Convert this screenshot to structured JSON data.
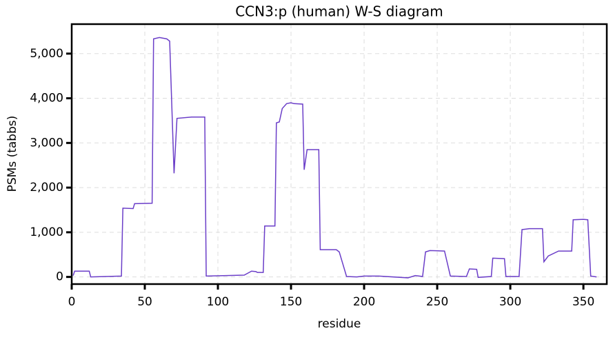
{
  "chart_data": {
    "type": "line",
    "title": "CCN3:p (human) W-S diagram",
    "xlabel": "residue",
    "ylabel": "PSMs (tabbs)",
    "xlim": [
      0,
      366
    ],
    "ylim": [
      -160,
      5660
    ],
    "xticks": [
      0,
      50,
      100,
      150,
      200,
      250,
      300,
      350
    ],
    "yticks": [
      0,
      {
        "value": 1000,
        "label": "1,000"
      },
      {
        "value": 2000,
        "label": "2,000"
      },
      {
        "value": 3000,
        "label": "3,000"
      },
      {
        "value": 4000,
        "label": "4,000"
      },
      {
        "value": 5000,
        "label": "5,000"
      }
    ],
    "grid": true,
    "series": [
      {
        "color": "#6a3dc8",
        "x": [
          1,
          2,
          12,
          13,
          34,
          35,
          42,
          43,
          55,
          56,
          60,
          65,
          67,
          70,
          72,
          82,
          91,
          92,
          118,
          123,
          126,
          127,
          131,
          132,
          139,
          140,
          142,
          144,
          147,
          150,
          152,
          158,
          159,
          161,
          169,
          170,
          181,
          183,
          188,
          195,
          200,
          210,
          230,
          235,
          240,
          242,
          245,
          255,
          259,
          270,
          272,
          277,
          278,
          287,
          288,
          296,
          297,
          306,
          308,
          313,
          322,
          323,
          326,
          333,
          342,
          343,
          350,
          353,
          355,
          359
        ],
        "values": [
          30,
          130,
          130,
          0,
          20,
          1540,
          1530,
          1640,
          1650,
          5330,
          5360,
          5330,
          5280,
          2320,
          3550,
          3580,
          3580,
          20,
          40,
          130,
          120,
          100,
          100,
          1140,
          1140,
          3450,
          3470,
          3770,
          3880,
          3900,
          3880,
          3870,
          2400,
          2850,
          2850,
          610,
          610,
          560,
          10,
          0,
          20,
          20,
          -20,
          30,
          10,
          560,
          590,
          580,
          20,
          10,
          180,
          170,
          -10,
          10,
          420,
          410,
          10,
          10,
          1060,
          1080,
          1080,
          340,
          470,
          580,
          580,
          1280,
          1290,
          1280,
          20,
          0
        ]
      }
    ]
  }
}
